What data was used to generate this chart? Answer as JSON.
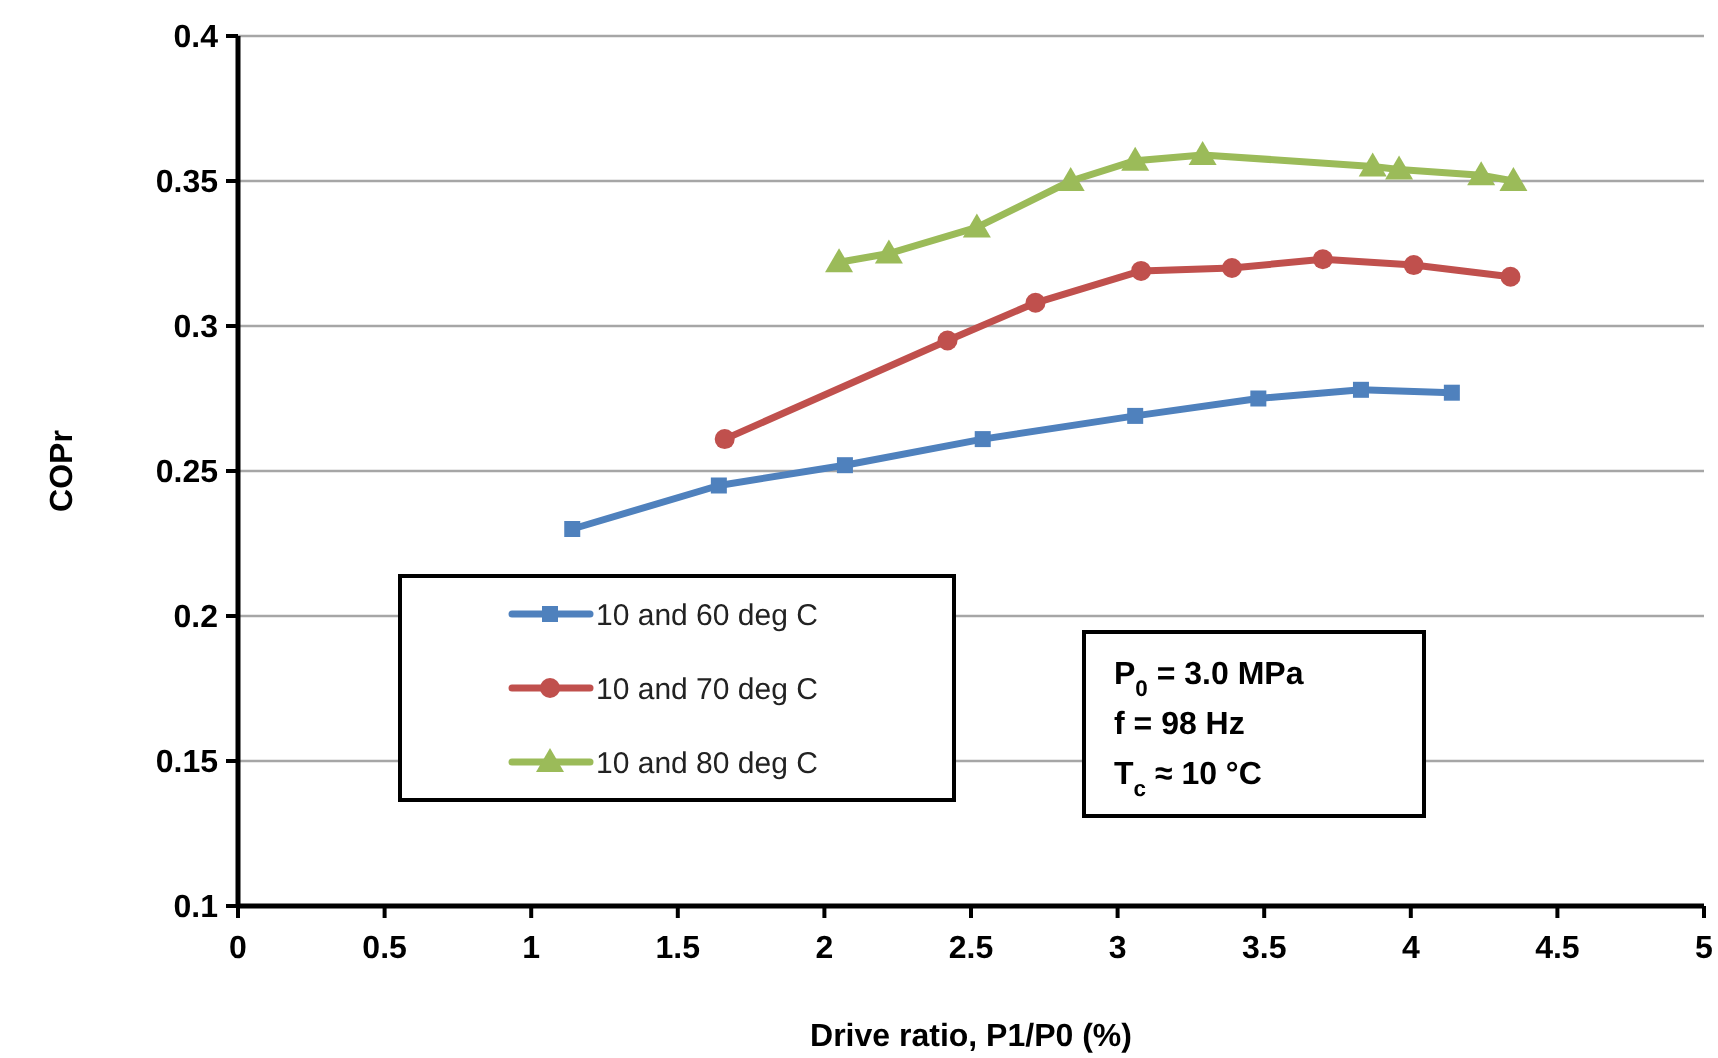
{
  "chart_data": {
    "type": "line",
    "xlabel": "Drive ratio, P1/P0 (%)",
    "ylabel": "COPr",
    "xlim": [
      0,
      5
    ],
    "xticks": [
      0,
      0.5,
      1,
      1.5,
      2,
      2.5,
      3,
      3.5,
      4,
      4.5,
      5
    ],
    "ylim": [
      0.1,
      0.4
    ],
    "yticks": [
      0.1,
      0.15,
      0.2,
      0.25,
      0.3,
      0.35,
      0.4
    ],
    "grid": "y",
    "legend": "bottom left",
    "line_style": "solid",
    "annotations": [
      "P$_{0}$ = 3.0 MPa",
      "f  = 98 Hz",
      "T$_{c}$ ≈ 10 °C"
    ],
    "series": [
      {
        "name": "10 and 60 deg C",
        "color": "#4f81bd",
        "marker": "square",
        "x": [
          1.14,
          1.64,
          2.07,
          2.54,
          3.06,
          3.48,
          3.83,
          4.14
        ],
        "values": [
          0.23,
          0.245,
          0.252,
          0.261,
          0.269,
          0.275,
          0.278,
          0.277
        ]
      },
      {
        "name": "10 and 70 deg C",
        "color": "#c0504d",
        "marker": "circle",
        "x": [
          1.66,
          2.42,
          2.72,
          3.08,
          3.39,
          3.7,
          4.01,
          4.34
        ],
        "values": [
          0.261,
          0.295,
          0.308,
          0.319,
          0.32,
          0.323,
          0.321,
          0.317
        ]
      },
      {
        "name": "10 and 80 deg C",
        "color": "#9bbb59",
        "marker": "triangle",
        "x": [
          2.05,
          2.22,
          2.52,
          2.84,
          3.06,
          3.29,
          3.87,
          3.96,
          4.24,
          4.35
        ],
        "values": [
          0.322,
          0.325,
          0.334,
          0.35,
          0.357,
          0.359,
          0.355,
          0.354,
          0.352,
          0.35
        ]
      }
    ]
  }
}
